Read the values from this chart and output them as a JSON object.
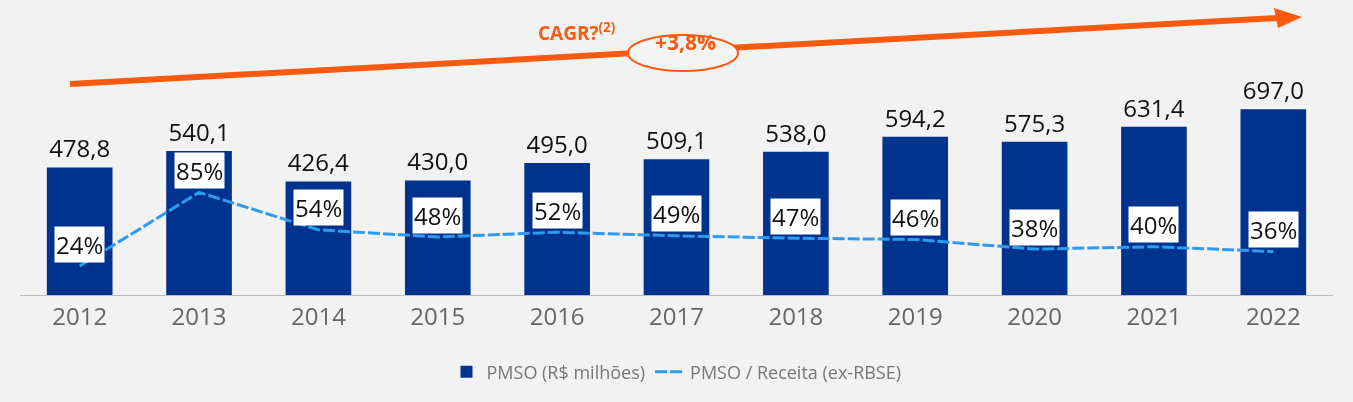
{
  "chart_data": {
    "type": "bar",
    "categories": [
      "2012",
      "2013",
      "2014",
      "2015",
      "2016",
      "2017",
      "2018",
      "2019",
      "2020",
      "2021",
      "2022"
    ],
    "series": [
      {
        "name": "PMSO (R$ milhões)",
        "color": "#00338d",
        "values": [
          478.8,
          540.1,
          426.4,
          430.0,
          495.0,
          509.1,
          538.0,
          594.2,
          575.3,
          631.4,
          697.0
        ],
        "value_labels": [
          "478,8",
          "540,1",
          "426,4",
          "430,0",
          "495,0",
          "509,1",
          "538,0",
          "594,2",
          "575,3",
          "631,4",
          "697,0"
        ]
      },
      {
        "name": "PMSO / Receita (ex-RBSE)",
        "type": "line",
        "axis": "y2",
        "color": "#2e9bf0",
        "line_style": "dashed",
        "values": [
          24,
          85,
          54,
          48,
          52,
          49,
          47,
          46,
          38,
          40,
          36
        ],
        "value_labels": [
          "24%",
          "85%",
          "54%",
          "48%",
          "52%",
          "49%",
          "47%",
          "46%",
          "38%",
          "40%",
          "36%"
        ]
      }
    ],
    "annotations": [
      "CAGR?$^{(2)}$",
      "+3,8%"
    ],
    "legend": "bottom"
  }
}
